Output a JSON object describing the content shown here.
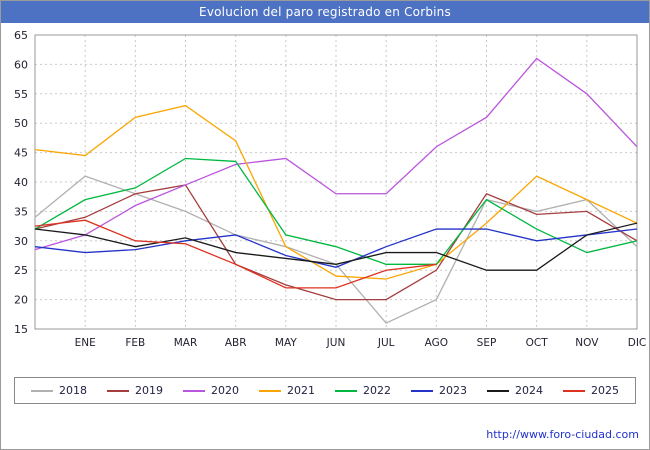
{
  "title": "Evolucion del paro registrado en Corbins",
  "footer": {
    "url": "http://www.foro-ciudad.com"
  },
  "ui_colors": {
    "titlebar_bg": "#4d72c4",
    "titlebar_text": "#ffffff",
    "grid": "#c9c9c9",
    "axis_text": "#222233",
    "plot_border": "#999999",
    "link": "#2233cc"
  },
  "chart_data": {
    "type": "line",
    "title": "Evolucion del paro registrado en Corbins",
    "xlabel": "",
    "ylabel": "",
    "ylim": [
      15,
      65
    ],
    "ytick_step": 5,
    "grid": true,
    "legend_position": "bottom",
    "categories": [
      "",
      "ENE",
      "FEB",
      "MAR",
      "ABR",
      "MAY",
      "JUN",
      "JUL",
      "AGO",
      "SEP",
      "OCT",
      "NOV",
      "DIC"
    ],
    "series": [
      {
        "name": "2018",
        "color": "#b0b0b0",
        "values": [
          34,
          41,
          38,
          35,
          31,
          29,
          26,
          16,
          20,
          37,
          35,
          37,
          29
        ]
      },
      {
        "name": "2019",
        "color": "#a43d3d",
        "values": [
          32,
          34,
          38,
          39.5,
          26,
          22.5,
          20,
          20,
          25,
          38,
          34.5,
          35,
          30
        ]
      },
      {
        "name": "2020",
        "color": "#bb55dd",
        "values": [
          28.5,
          31,
          36,
          39.5,
          43,
          44,
          38,
          38,
          46,
          51,
          61,
          55,
          46
        ]
      },
      {
        "name": "2021",
        "color": "#f9a602",
        "values": [
          45.5,
          44.5,
          51,
          53,
          47,
          29,
          24,
          23.5,
          26,
          33,
          41,
          37,
          33
        ]
      },
      {
        "name": "2022",
        "color": "#00b840",
        "values": [
          32,
          37,
          39,
          44,
          43.5,
          31,
          29,
          26,
          26,
          37,
          32,
          28,
          30
        ]
      },
      {
        "name": "2023",
        "color": "#2433c8",
        "values": [
          29,
          28,
          28.5,
          30,
          31,
          27.5,
          25.5,
          29,
          32,
          32,
          30,
          31,
          32
        ]
      },
      {
        "name": "2024",
        "color": "#1a1a1a",
        "values": [
          32,
          31,
          29,
          30.5,
          28,
          27,
          26,
          28,
          28,
          25,
          25,
          31,
          33
        ]
      },
      {
        "name": "2025",
        "color": "#dd3222",
        "values": [
          32.5,
          33.5,
          30,
          29.5,
          26,
          22,
          22,
          25,
          26
        ]
      }
    ]
  }
}
